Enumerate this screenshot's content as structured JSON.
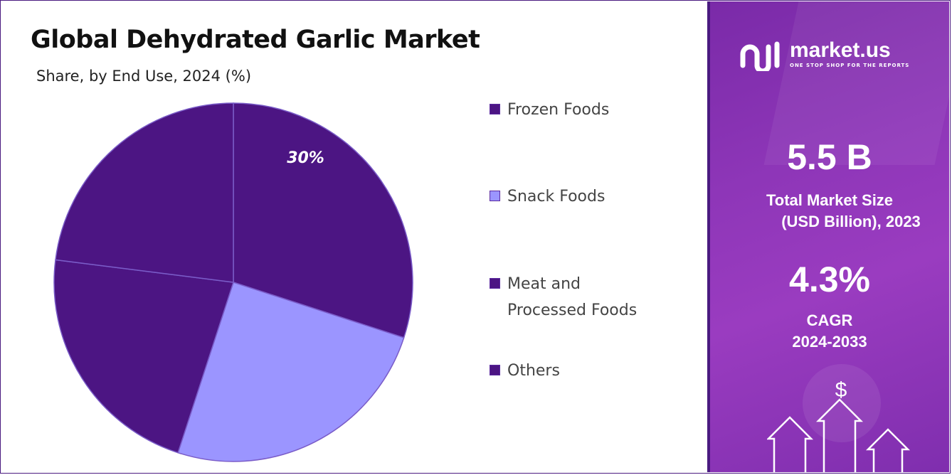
{
  "title": "Global Dehydrated Garlic Market",
  "subtitle": "Share, by End Use, 2024 (%)",
  "colors": {
    "dark": "#4c1583",
    "light": "#9b95ff",
    "panel": "#8e36b8"
  },
  "legend": [
    {
      "label": "Frozen Foods",
      "color": "#4c1583"
    },
    {
      "label": "Snack Foods",
      "color": "#9b95ff"
    },
    {
      "label": "Meat and\nProcessed Foods",
      "color": "#4c1583"
    },
    {
      "label": "Others",
      "color": "#4c1583"
    }
  ],
  "chart_data": {
    "type": "pie",
    "title": "Global Dehydrated Garlic Market",
    "subtitle": "Share, by End Use, 2024 (%)",
    "slices": [
      {
        "name": "Frozen Foods",
        "value": 30,
        "label": "30%",
        "color": "#4c1583"
      },
      {
        "name": "Snack Foods",
        "value": 25,
        "label": "",
        "color": "#9b95ff"
      },
      {
        "name": "Meat and Processed Foods",
        "value": 22,
        "label": "",
        "color": "#4c1583"
      },
      {
        "name": "Others",
        "value": 23,
        "label": "",
        "color": "#4c1583"
      }
    ]
  },
  "panel": {
    "brand": "market.us",
    "tagline": "ONE STOP SHOP FOR THE REPORTS",
    "market_size_value": "5.5 B",
    "market_size_label_1": "Total Market Size",
    "market_size_label_2": "(USD Billion), 2023",
    "cagr_value": "4.3%",
    "cagr_label_1": "CAGR",
    "cagr_label_2": "2024-2033",
    "dollar_icon": "$"
  }
}
